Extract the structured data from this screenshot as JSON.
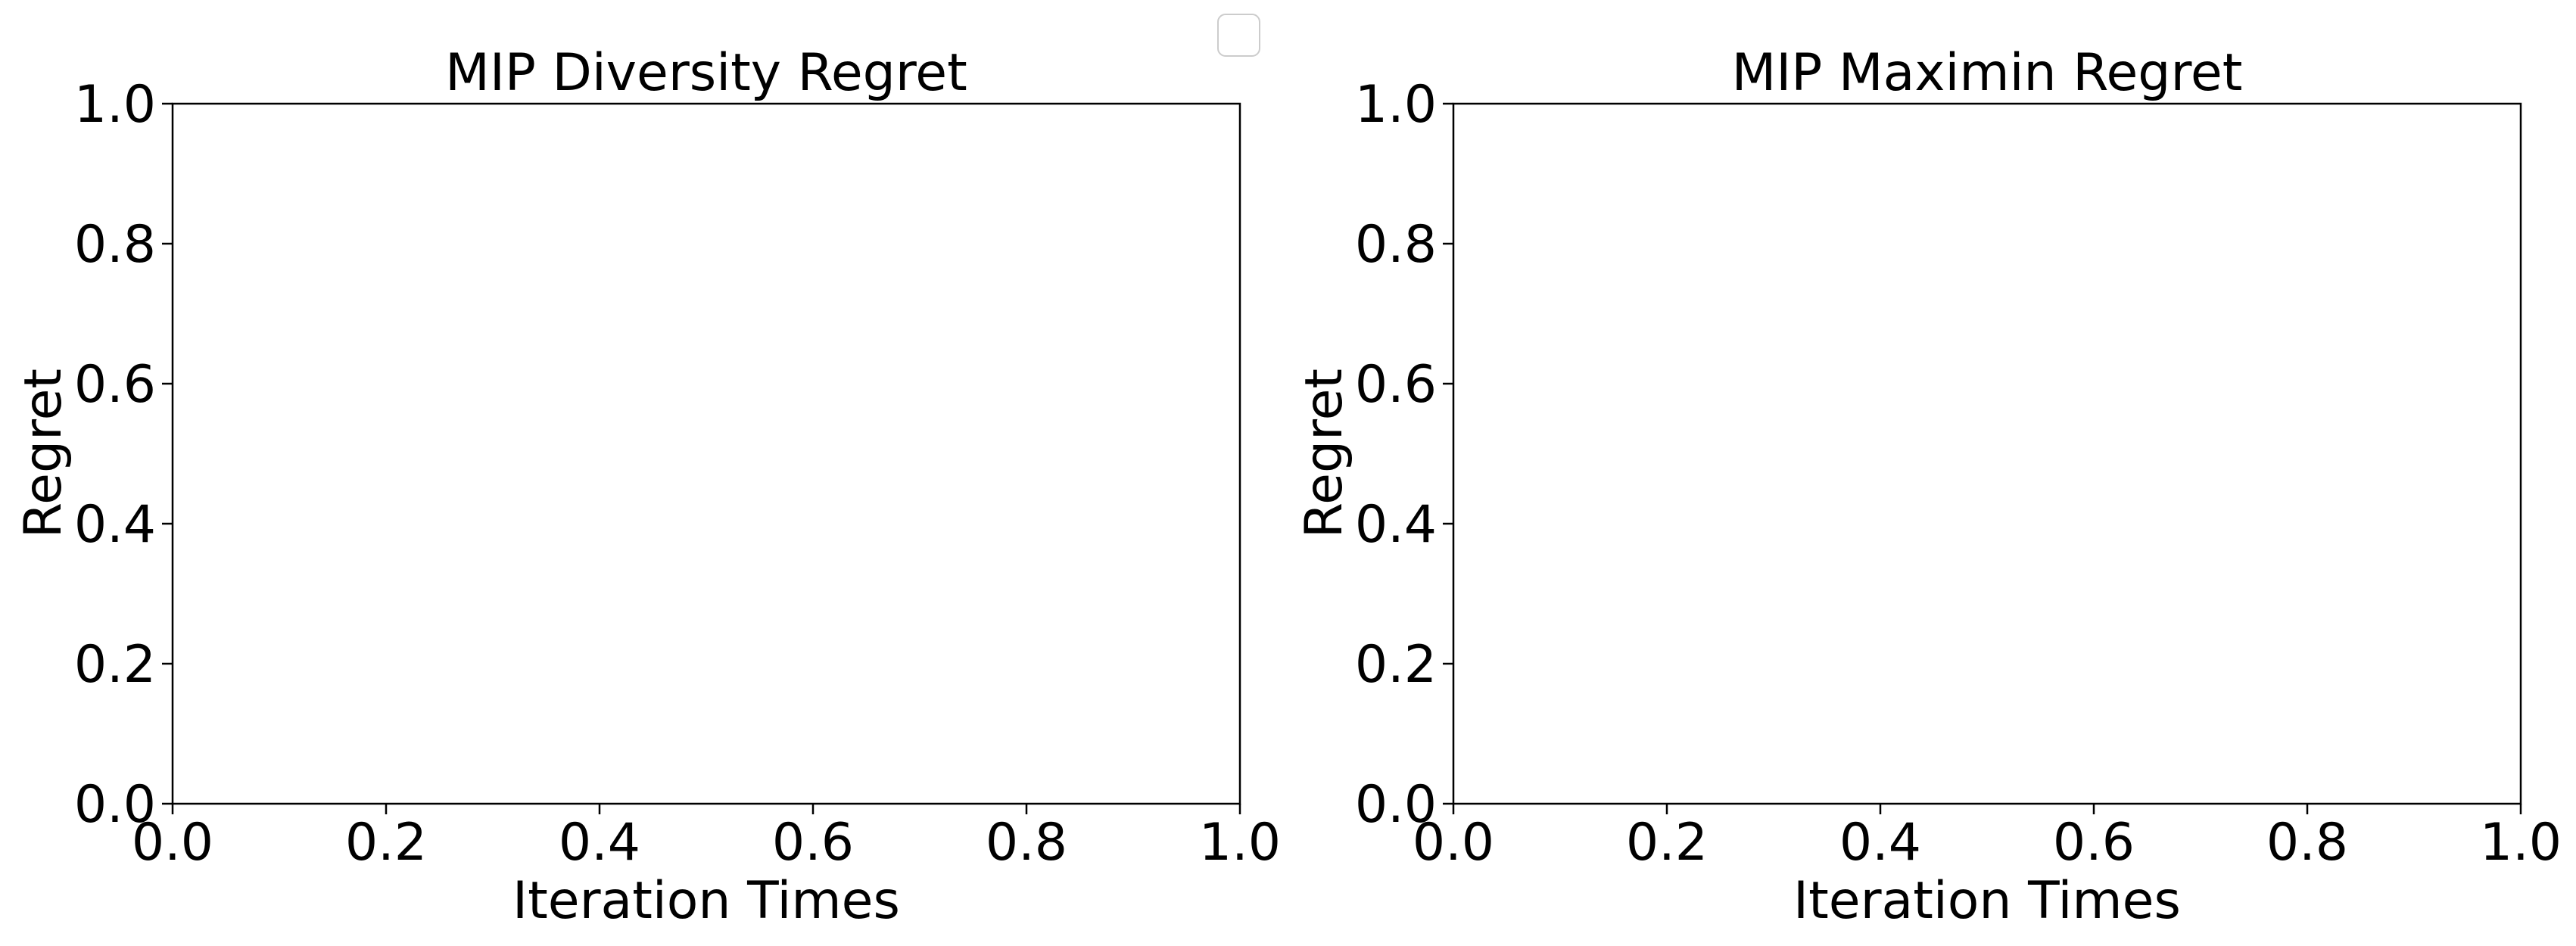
{
  "chart_data": [
    {
      "type": "line",
      "title": "MIP Diversity Regret",
      "xlabel": "Iteration Times",
      "ylabel": "Regret",
      "xlim": [
        0.0,
        1.0
      ],
      "ylim": [
        0.0,
        1.0
      ],
      "xticks": [
        "0.0",
        "0.2",
        "0.4",
        "0.6",
        "0.8",
        "1.0"
      ],
      "yticks": [
        "0.0",
        "0.2",
        "0.4",
        "0.6",
        "0.8",
        "1.0"
      ],
      "series": [],
      "grid": false
    },
    {
      "type": "line",
      "title": "MIP Maximin Regret",
      "xlabel": "Iteration Times",
      "ylabel": "Regret",
      "xlim": [
        0.0,
        1.0
      ],
      "ylim": [
        0.0,
        1.0
      ],
      "xticks": [
        "0.0",
        "0.2",
        "0.4",
        "0.6",
        "0.8",
        "1.0"
      ],
      "yticks": [
        "0.0",
        "0.2",
        "0.4",
        "0.6",
        "0.8",
        "1.0"
      ],
      "series": [],
      "grid": false
    }
  ],
  "legend": {
    "placement": "top-center",
    "entries": []
  }
}
